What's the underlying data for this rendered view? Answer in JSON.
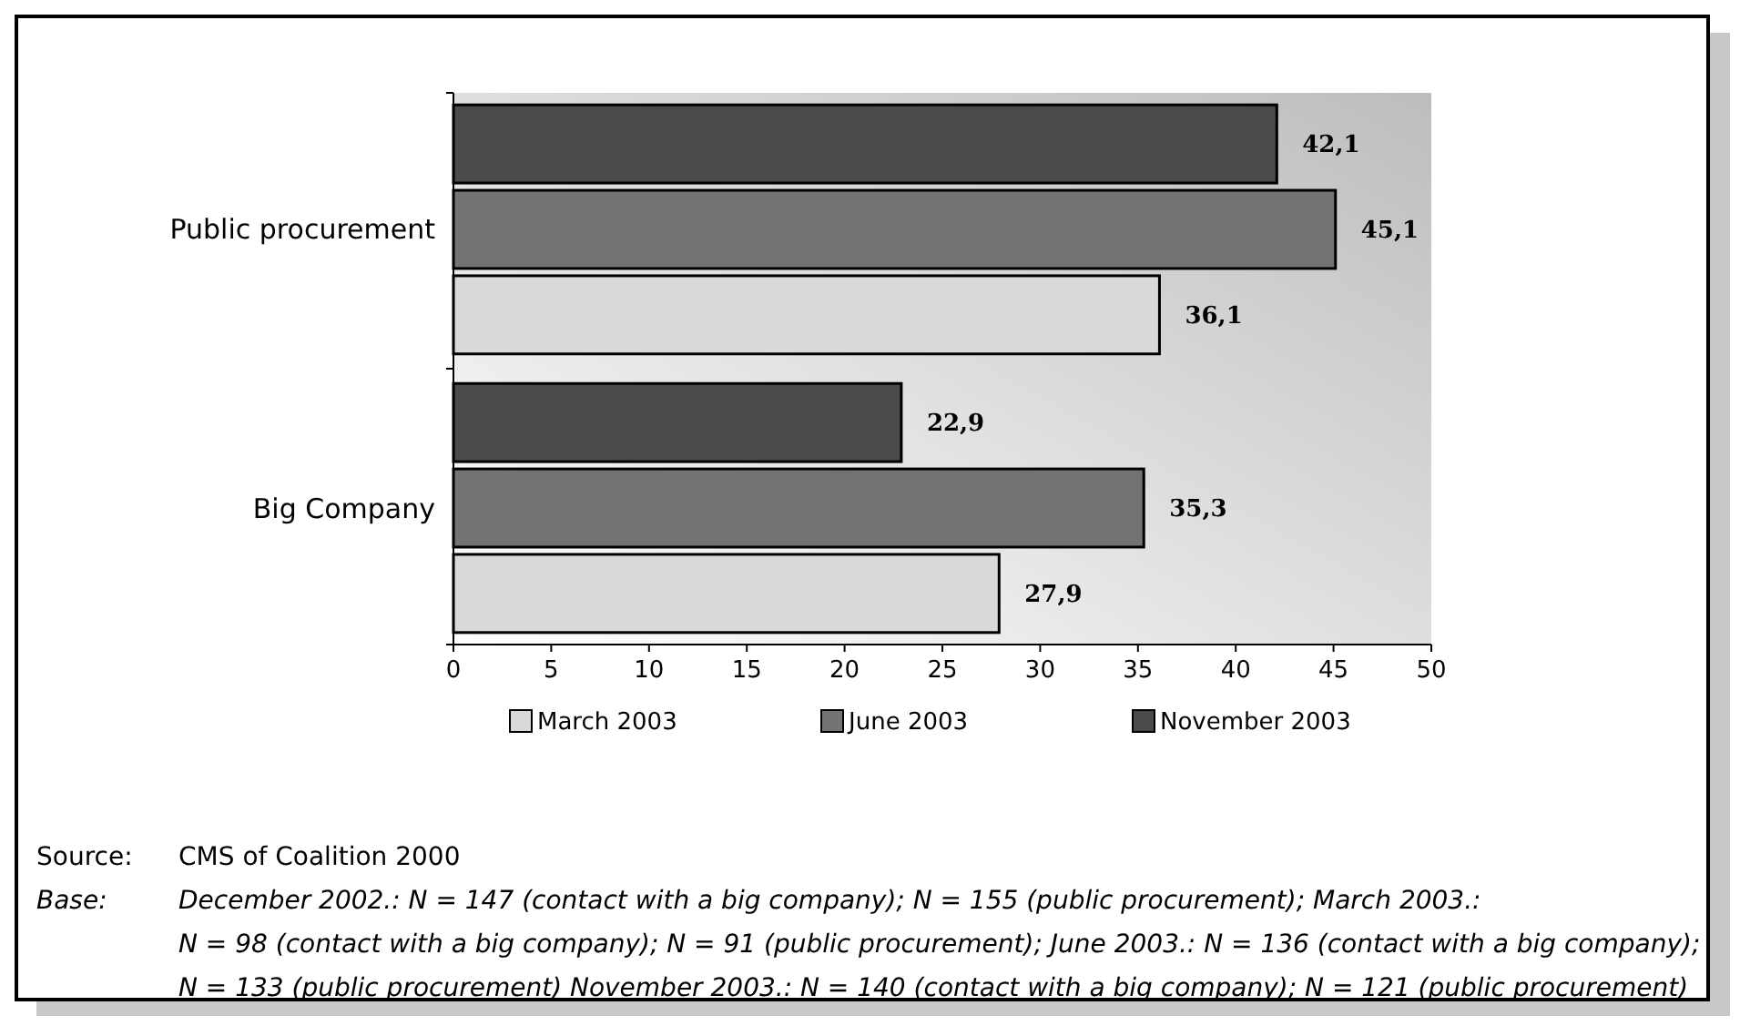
{
  "chart_data": {
    "type": "bar",
    "orientation": "horizontal",
    "categories": [
      "Public procurement",
      "Big Company"
    ],
    "series": [
      {
        "name": "March 2003",
        "color": "#d9d9d9",
        "values": [
          36.1,
          27.9
        ],
        "value_labels": [
          "36,1",
          "27,9"
        ]
      },
      {
        "name": "June 2003",
        "color": "#737373",
        "values": [
          45.1,
          35.3
        ],
        "value_labels": [
          "45,1",
          "35,3"
        ]
      },
      {
        "name": "November 2003",
        "color": "#4a4a4a",
        "values": [
          42.1,
          22.9
        ],
        "value_labels": [
          "42,1",
          "22,9"
        ]
      }
    ],
    "xlim": [
      0,
      50
    ],
    "xticks": [
      0,
      5,
      10,
      15,
      20,
      25,
      30,
      35,
      40,
      45,
      50
    ],
    "grid": false,
    "legend": "bottom",
    "annotations": [
      "Source: CMS of Coalition 2000",
      "Base: December 2002.: N = 147 (contact with a big company); N = 155 (public procurement); March 2003.:",
      "N = 98 (contact with a big company); N = 91 (public procurement); June 2003.: N = 136 (contact with a big company);",
      "N = 133 (public procurement) November 2003.: N = 140 (contact with a big company); N = 121 (public procurement)"
    ]
  }
}
